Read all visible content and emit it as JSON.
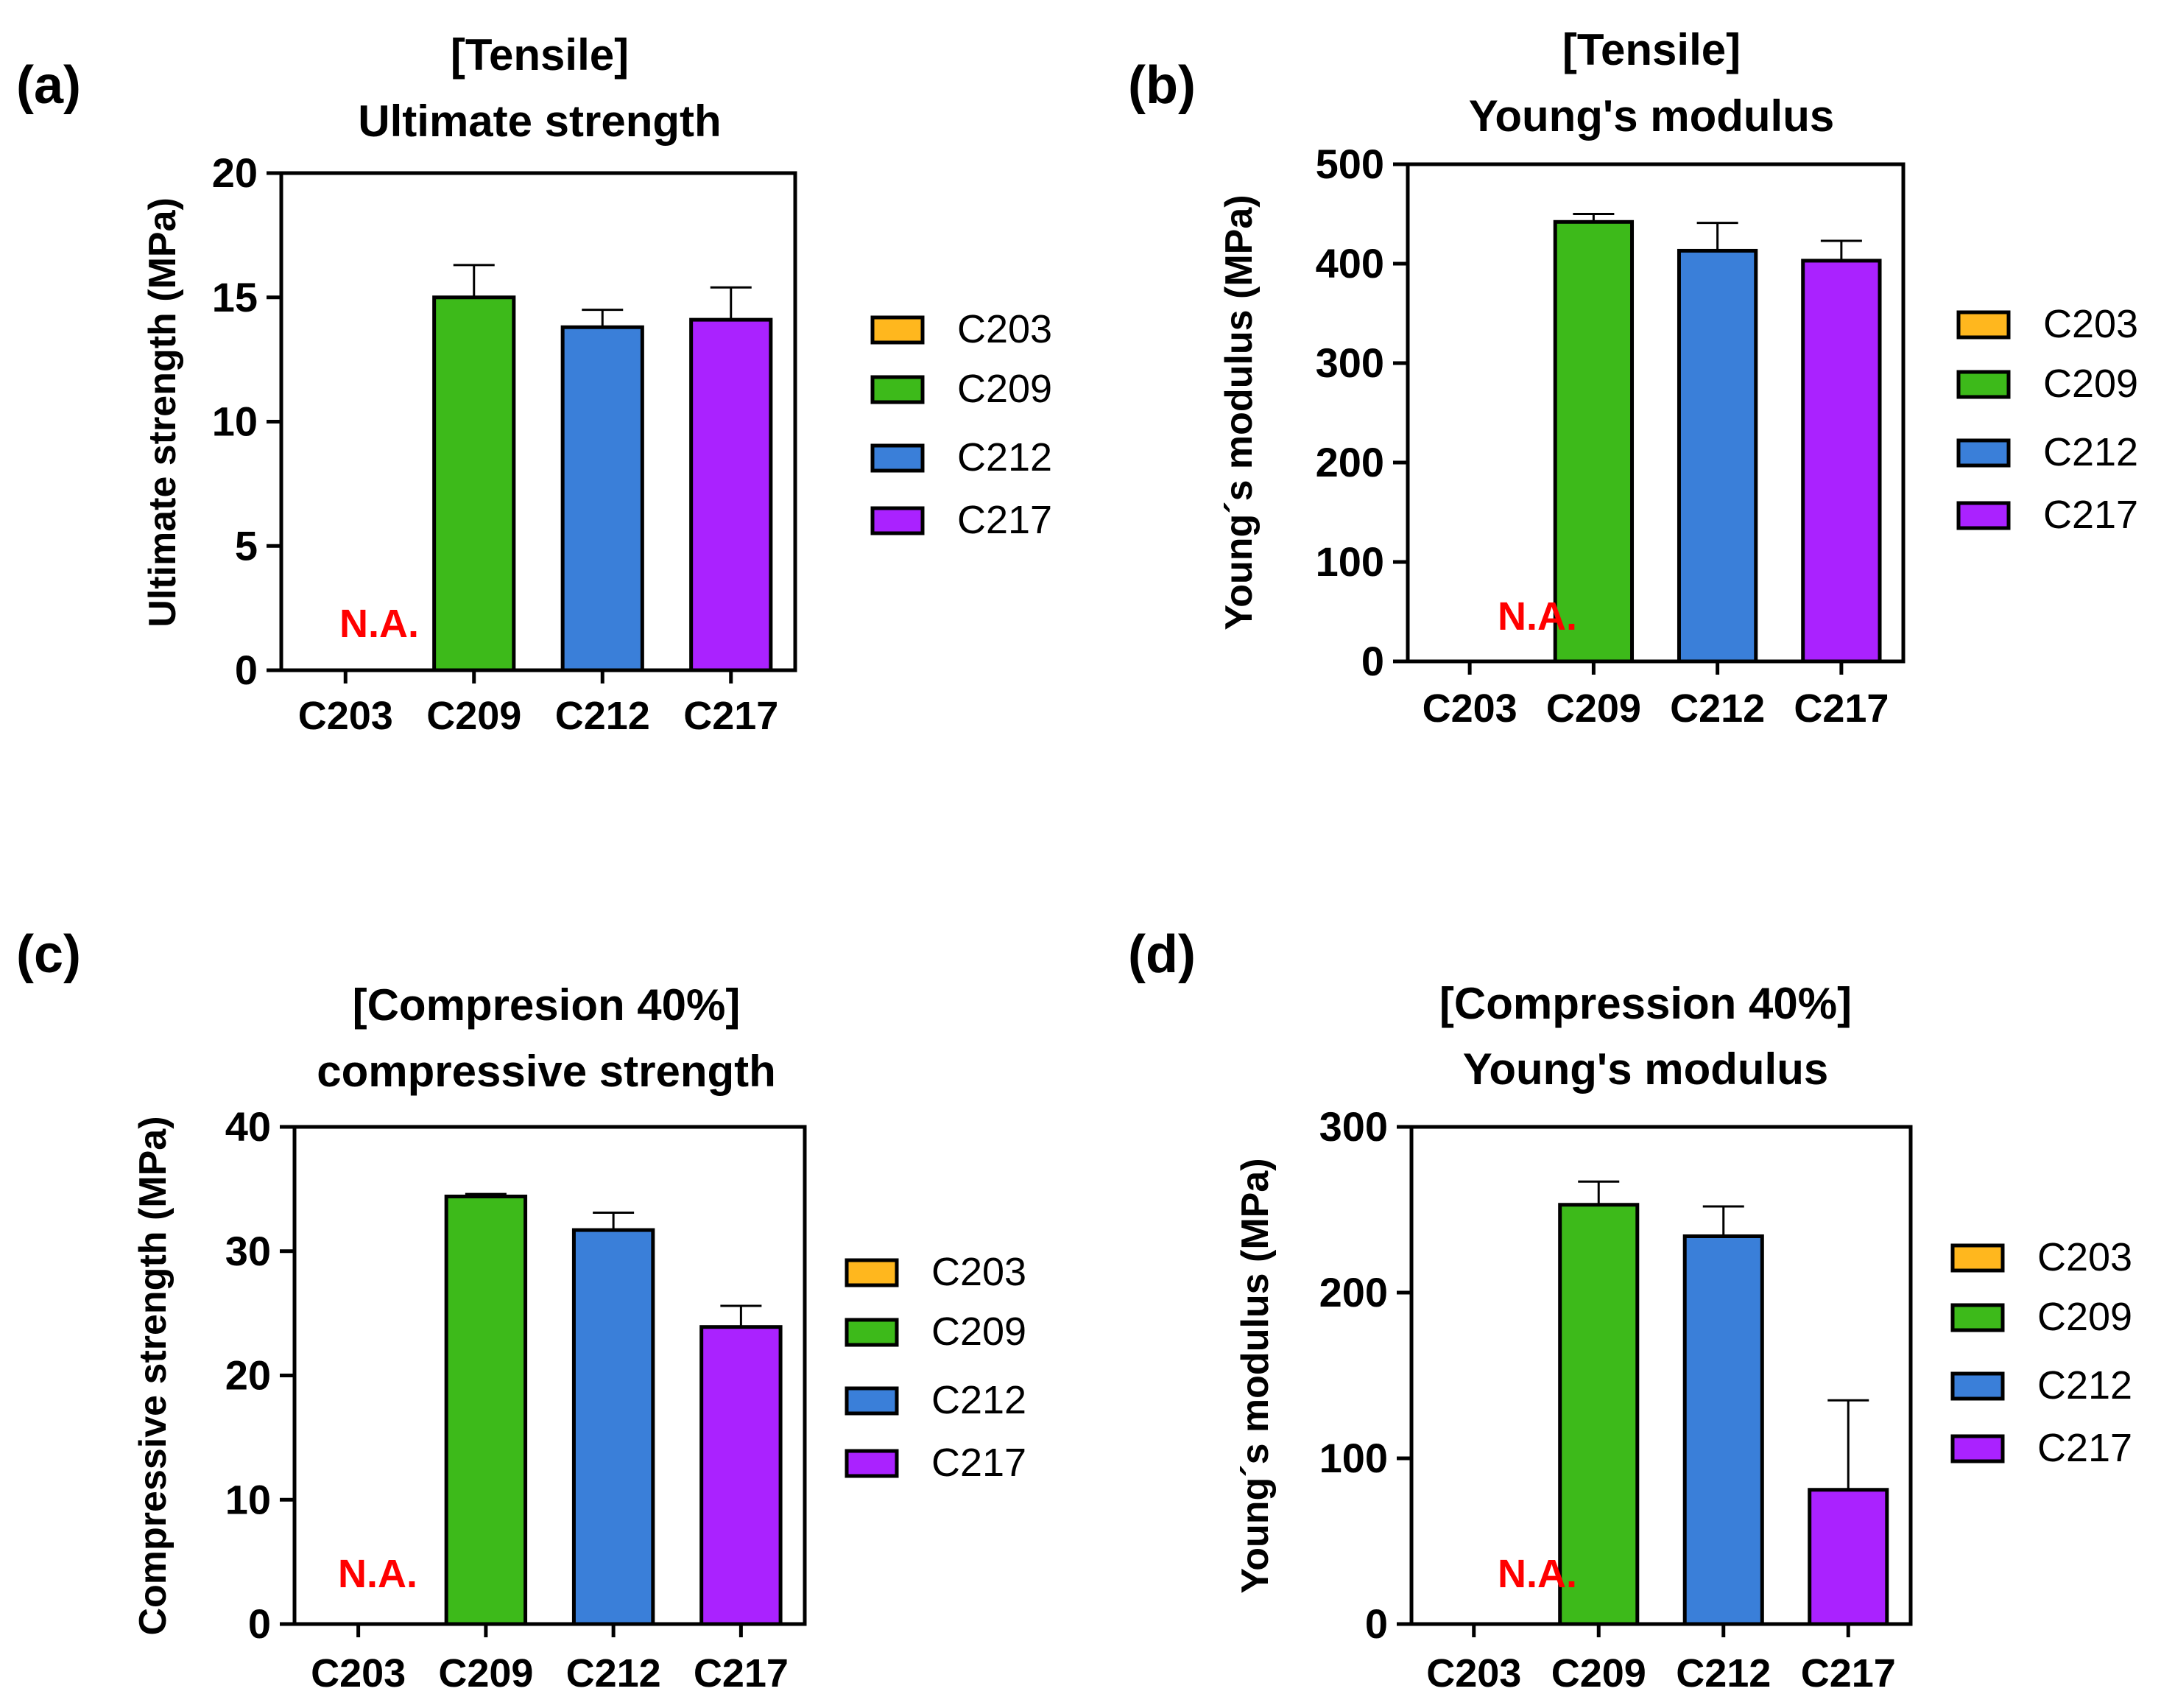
{
  "chart_data": [
    {
      "type": "bar",
      "panel_label": "(a)",
      "title_lines": [
        "[Tensile]",
        "Ultimate strength"
      ],
      "ylabel": "Ultimate strength (MPa)",
      "ylim": [
        0,
        20
      ],
      "yticks": [
        "0",
        "5",
        "10",
        "15",
        "20"
      ],
      "categories": [
        "C203",
        "C209",
        "C212",
        "C217"
      ],
      "values": [
        null,
        15.0,
        13.8,
        14.1
      ],
      "errors": [
        null,
        1.3,
        0.7,
        1.3
      ],
      "na_label": "N.A.",
      "legend": [
        "C203",
        "C209",
        "C212",
        "C217"
      ]
    },
    {
      "type": "bar",
      "panel_label": "(b)",
      "title_lines": [
        "[Tensile]",
        "Young's modulus"
      ],
      "ylabel": "Young´s modulus (MPa)",
      "ylim": [
        0,
        500
      ],
      "yticks": [
        "0",
        "100",
        "200",
        "300",
        "400",
        "500"
      ],
      "categories": [
        "C203",
        "C209",
        "C212",
        "C217"
      ],
      "values": [
        null,
        442,
        413,
        403
      ],
      "errors": [
        null,
        8,
        28,
        20
      ],
      "na_label": "N.A.",
      "legend": [
        "C203",
        "C209",
        "C212",
        "C217"
      ]
    },
    {
      "type": "bar",
      "panel_label": "(c)",
      "title_lines": [
        "[Compresion 40%]",
        "compressive strength"
      ],
      "ylabel": "Compressive strength (MPa)",
      "ylim": [
        0,
        40
      ],
      "yticks": [
        "0",
        "10",
        "20",
        "30",
        "40"
      ],
      "categories": [
        "C203",
        "C209",
        "C212",
        "C217"
      ],
      "values": [
        null,
        34.4,
        31.7,
        23.9
      ],
      "errors": [
        null,
        0.2,
        1.4,
        1.7
      ],
      "na_label": "N.A.",
      "legend": [
        "C203",
        "C209",
        "C212",
        "C217"
      ]
    },
    {
      "type": "bar",
      "panel_label": "(d)",
      "title_lines": [
        "[Compression 40%]",
        "Young's modulus"
      ],
      "ylabel": "Young´s modulus (MPa)",
      "ylim": [
        0,
        300
      ],
      "yticks": [
        "0",
        "100",
        "200",
        "300"
      ],
      "categories": [
        "C203",
        "C209",
        "C212",
        "C217"
      ],
      "values": [
        null,
        253,
        234,
        81
      ],
      "errors": [
        null,
        14,
        18,
        54
      ],
      "na_label": "N.A.",
      "legend": [
        "C203",
        "C209",
        "C212",
        "C217"
      ]
    }
  ],
  "colors": {
    "C203": "#FFB71E",
    "C209": "#3DBA1A",
    "C212": "#3A7FD9",
    "C217": "#AA22FF",
    "na": "#FF0000",
    "axis": "#000000"
  }
}
